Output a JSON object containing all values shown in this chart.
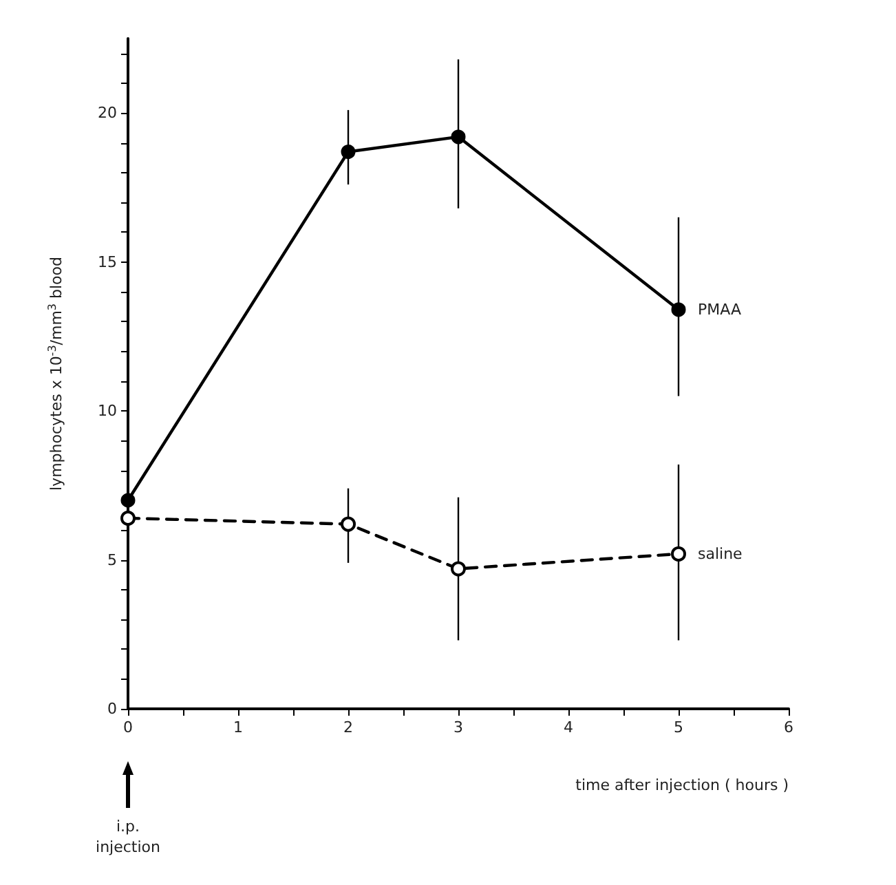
{
  "chart_data": {
    "type": "line",
    "xlabel": "time after injection ( hours )",
    "ylabel": "lymphocytes x 10$^{-3}$/mm$^{3}$ blood",
    "x": [
      0,
      2,
      3,
      5
    ],
    "series": [
      {
        "name": "PMAA",
        "color": "#000000",
        "line_style": "solid",
        "values": [
          7.0,
          18.7,
          19.2,
          13.4
        ],
        "errors": [
          null,
          [
            17.6,
            20.1
          ],
          [
            16.8,
            21.8
          ],
          [
            10.5,
            16.5
          ]
        ]
      },
      {
        "name": "saline",
        "color": "#000000",
        "line_style": "dashed",
        "values": [
          6.4,
          6.2,
          4.7,
          5.2
        ],
        "errors": [
          null,
          [
            4.9,
            7.4
          ],
          [
            2.3,
            7.1
          ],
          [
            2.3,
            8.2
          ]
        ]
      }
    ],
    "xlim": [
      0,
      6
    ],
    "xticks": [
      0,
      {
        "value": 0.5,
        "label": null
      },
      1,
      {
        "value": 1.5,
        "label": null
      },
      2,
      {
        "value": 2.5,
        "label": null
      },
      3,
      {
        "value": 3.5,
        "label": null
      },
      4,
      {
        "value": 4.5,
        "label": null
      },
      5,
      {
        "value": 5.5,
        "label": null
      },
      6
    ],
    "ylim": [
      0,
      22.5
    ],
    "yticks": [
      0,
      {
        "value": 1,
        "label": null
      },
      {
        "value": 2,
        "label": null
      },
      {
        "value": 3,
        "label": null
      },
      {
        "value": 4,
        "label": null
      },
      5,
      {
        "value": 6,
        "label": null
      },
      {
        "value": 7,
        "label": null
      },
      {
        "value": 8,
        "label": null
      },
      {
        "value": 9,
        "label": null
      },
      10,
      {
        "value": 11,
        "label": null
      },
      {
        "value": 12,
        "label": null
      },
      {
        "value": 13,
        "label": null
      },
      {
        "value": 14,
        "label": null
      },
      15,
      {
        "value": 16,
        "label": null
      },
      {
        "value": 17,
        "label": null
      },
      {
        "value": 18,
        "label": null
      },
      {
        "value": 19,
        "label": null
      },
      20,
      {
        "value": 21,
        "label": null
      },
      {
        "value": 22,
        "label": null
      }
    ],
    "marker": "circle",
    "grid": false,
    "legend": false,
    "annotations": [
      "i.p.\ninjection"
    ]
  }
}
